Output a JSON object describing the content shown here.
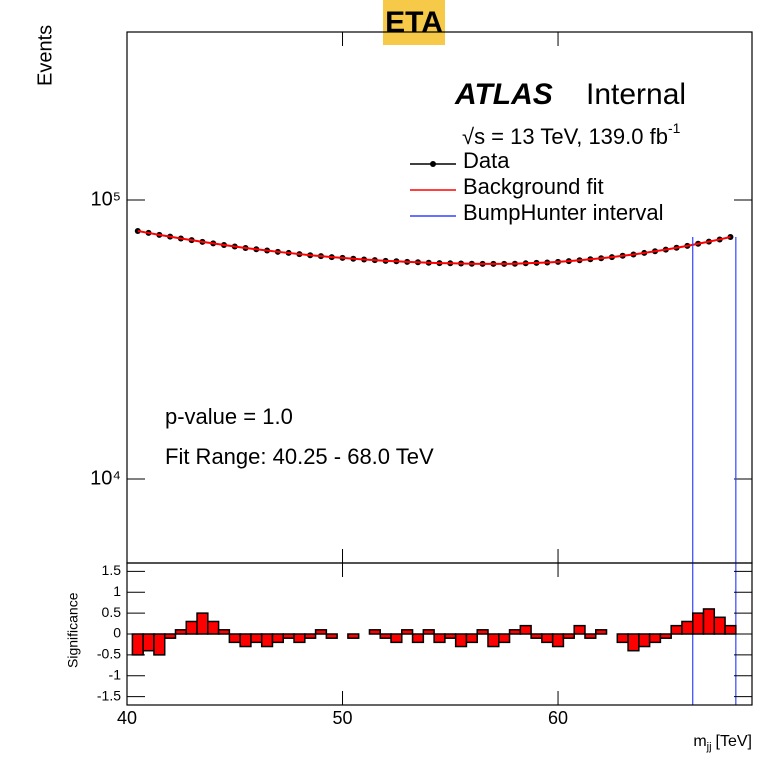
{
  "badge": "ETA",
  "chart_data": [
    {
      "type": "line",
      "log_scale": true,
      "title": "ATLAS",
      "subtitle": "Internal",
      "ylabel": "Events",
      "energy": {
        "text": "√s = 13 TeV, 139.0 fb",
        "sup": "-1"
      },
      "annotations": [
        "p-value = 1.0",
        "Fit Range: 40.25 - 68.0 TeV"
      ],
      "xlim": [
        40,
        69
      ],
      "xticks": [
        40,
        50,
        60
      ],
      "ylim": [
        5000,
        400000
      ],
      "yticks": [
        {
          "value": 10000,
          "label": "10⁴"
        },
        {
          "value": 100000,
          "label": "10⁵"
        }
      ],
      "x": [
        40.5,
        41,
        41.5,
        42,
        42.5,
        43,
        43.5,
        44,
        44.5,
        45,
        45.5,
        46,
        46.5,
        47,
        47.5,
        48,
        48.5,
        49,
        49.5,
        50,
        50.5,
        51,
        51.5,
        52,
        52.5,
        53,
        53.5,
        54,
        54.5,
        55,
        55.5,
        56,
        56.5,
        57,
        57.5,
        58,
        58.5,
        59,
        59.5,
        60,
        60.5,
        61,
        61.5,
        62,
        62.5,
        63,
        63.5,
        64,
        64.5,
        65,
        65.5,
        66,
        66.5,
        67,
        67.5,
        68
      ],
      "series": [
        {
          "name": "Data",
          "color": "#000000",
          "marker": true,
          "values": [
            77400,
            76200,
            75000,
            73900,
            72800,
            71800,
            70800,
            69900,
            69000,
            68100,
            67300,
            66600,
            65900,
            65200,
            64600,
            64000,
            63400,
            62900,
            62400,
            62000,
            61600,
            61200,
            60900,
            60500,
            60300,
            60000,
            59800,
            59600,
            59400,
            59300,
            59200,
            59100,
            59000,
            59000,
            59000,
            59100,
            59300,
            59500,
            59700,
            60000,
            60400,
            60800,
            61300,
            61800,
            62400,
            63100,
            63800,
            64600,
            65500,
            66400,
            67400,
            68500,
            69700,
            70900,
            72200,
            73700
          ]
        },
        {
          "name": "Background fit",
          "color": "#ff0000",
          "marker": false,
          "values": [
            77400,
            76200,
            75000,
            73900,
            72800,
            71800,
            70800,
            69900,
            69000,
            68100,
            67300,
            66600,
            65900,
            65200,
            64600,
            64000,
            63400,
            62900,
            62400,
            62000,
            61600,
            61200,
            60900,
            60500,
            60300,
            60000,
            59800,
            59600,
            59400,
            59300,
            59200,
            59100,
            59000,
            59000,
            59000,
            59100,
            59300,
            59500,
            59700,
            60000,
            60400,
            60800,
            61300,
            61800,
            62400,
            63100,
            63800,
            64600,
            65500,
            66400,
            67400,
            68500,
            69700,
            70900,
            72200,
            73700
          ]
        }
      ],
      "interval": {
        "name": "BumpHunter interval",
        "color": "#3344ff",
        "x": [
          66.25,
          68.25
        ]
      }
    },
    {
      "type": "histogram",
      "ylabel": "Significance",
      "xlabel": {
        "symbol": "m",
        "sub": "jj",
        "unit": "[TeV]"
      },
      "xlim": [
        40,
        69
      ],
      "xticks": [
        40,
        50,
        60
      ],
      "ylim": [
        -1.7,
        1.7
      ],
      "yticks": [
        -1.5,
        -1,
        -0.5,
        0,
        0.5,
        1,
        1.5
      ],
      "color": "#ff0000",
      "bins": [
        40.25,
        40.75,
        41.25,
        41.75,
        42.25,
        42.75,
        43.25,
        43.75,
        44.25,
        44.75,
        45.25,
        45.75,
        46.25,
        46.75,
        47.25,
        47.75,
        48.25,
        48.75,
        49.25,
        49.75,
        50.25,
        50.75,
        51.25,
        51.75,
        52.25,
        52.75,
        53.25,
        53.75,
        54.25,
        54.75,
        55.25,
        55.75,
        56.25,
        56.75,
        57.25,
        57.75,
        58.25,
        58.75,
        59.25,
        59.75,
        60.25,
        60.75,
        61.25,
        61.75,
        62.25,
        62.75,
        63.25,
        63.75,
        64.25,
        64.75,
        65.25,
        65.75,
        66.25,
        66.75,
        67.25,
        67.75,
        68.25
      ],
      "values": [
        -0.5,
        -0.4,
        -0.5,
        -0.1,
        0.1,
        0.3,
        0.5,
        0.3,
        0.1,
        -0.2,
        -0.3,
        -0.2,
        -0.3,
        -0.2,
        -0.1,
        -0.2,
        -0.1,
        0.1,
        -0.1,
        0,
        -0.1,
        0,
        0.1,
        -0.1,
        -0.2,
        0.1,
        -0.2,
        0.1,
        -0.2,
        -0.1,
        -0.3,
        -0.2,
        0.1,
        -0.3,
        -0.2,
        0.1,
        0.2,
        -0.1,
        -0.2,
        -0.3,
        -0.1,
        0.2,
        -0.1,
        0.1,
        0,
        -0.2,
        -0.4,
        -0.3,
        -0.2,
        -0.1,
        0.2,
        0.3,
        0.5,
        0.6,
        0.4,
        0.2
      ]
    }
  ]
}
